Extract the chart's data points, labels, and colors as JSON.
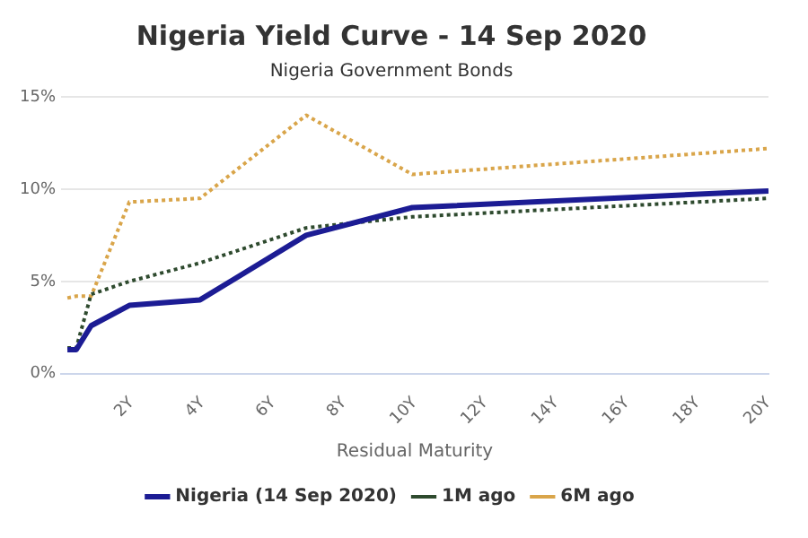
{
  "chart_data": {
    "type": "line",
    "title": "Nigeria Yield Curve - 14 Sep 2020",
    "subtitle": "Nigeria Government Bonds",
    "xlabel": "Residual Maturity",
    "x": [
      0.18,
      0.43,
      0.85,
      1.93,
      3.93,
      6.93,
      9.93,
      20
    ],
    "series": [
      {
        "name": "Nigeria (14 Sep 2020)",
        "color": "#1c1c94",
        "line_style": "solid",
        "values": [
          1.3,
          1.3,
          2.6,
          3.7,
          4.0,
          7.5,
          9.0,
          9.9
        ]
      },
      {
        "name": "1M ago",
        "color": "#2e4a2e",
        "line_style": "dotted",
        "values": [
          1.4,
          1.4,
          4.3,
          5.0,
          6.0,
          7.9,
          8.5,
          9.5
        ]
      },
      {
        "name": "6M ago",
        "color": "#d9a54a",
        "line_style": "dotted",
        "values": [
          4.1,
          4.2,
          4.2,
          9.3,
          9.5,
          14.0,
          10.8,
          12.2
        ]
      }
    ],
    "xlim": [
      0,
      20
    ],
    "xticks": [
      {
        "value": 2,
        "label": "2Y"
      },
      {
        "value": 4,
        "label": "4Y"
      },
      {
        "value": 6,
        "label": "6Y"
      },
      {
        "value": 8,
        "label": "8Y"
      },
      {
        "value": 10,
        "label": "10Y"
      },
      {
        "value": 12,
        "label": "12Y"
      },
      {
        "value": 14,
        "label": "14Y"
      },
      {
        "value": 16,
        "label": "16Y"
      },
      {
        "value": 18,
        "label": "18Y"
      },
      {
        "value": 20,
        "label": "20Y"
      }
    ],
    "ylim": [
      0,
      15
    ],
    "yticks": [
      {
        "value": 0,
        "label": "0%"
      },
      {
        "value": 5,
        "label": "5%"
      },
      {
        "value": 10,
        "label": "10%"
      },
      {
        "value": 15,
        "label": "15%"
      }
    ],
    "grid": "y",
    "legend": "bottom",
    "marker": "none"
  }
}
